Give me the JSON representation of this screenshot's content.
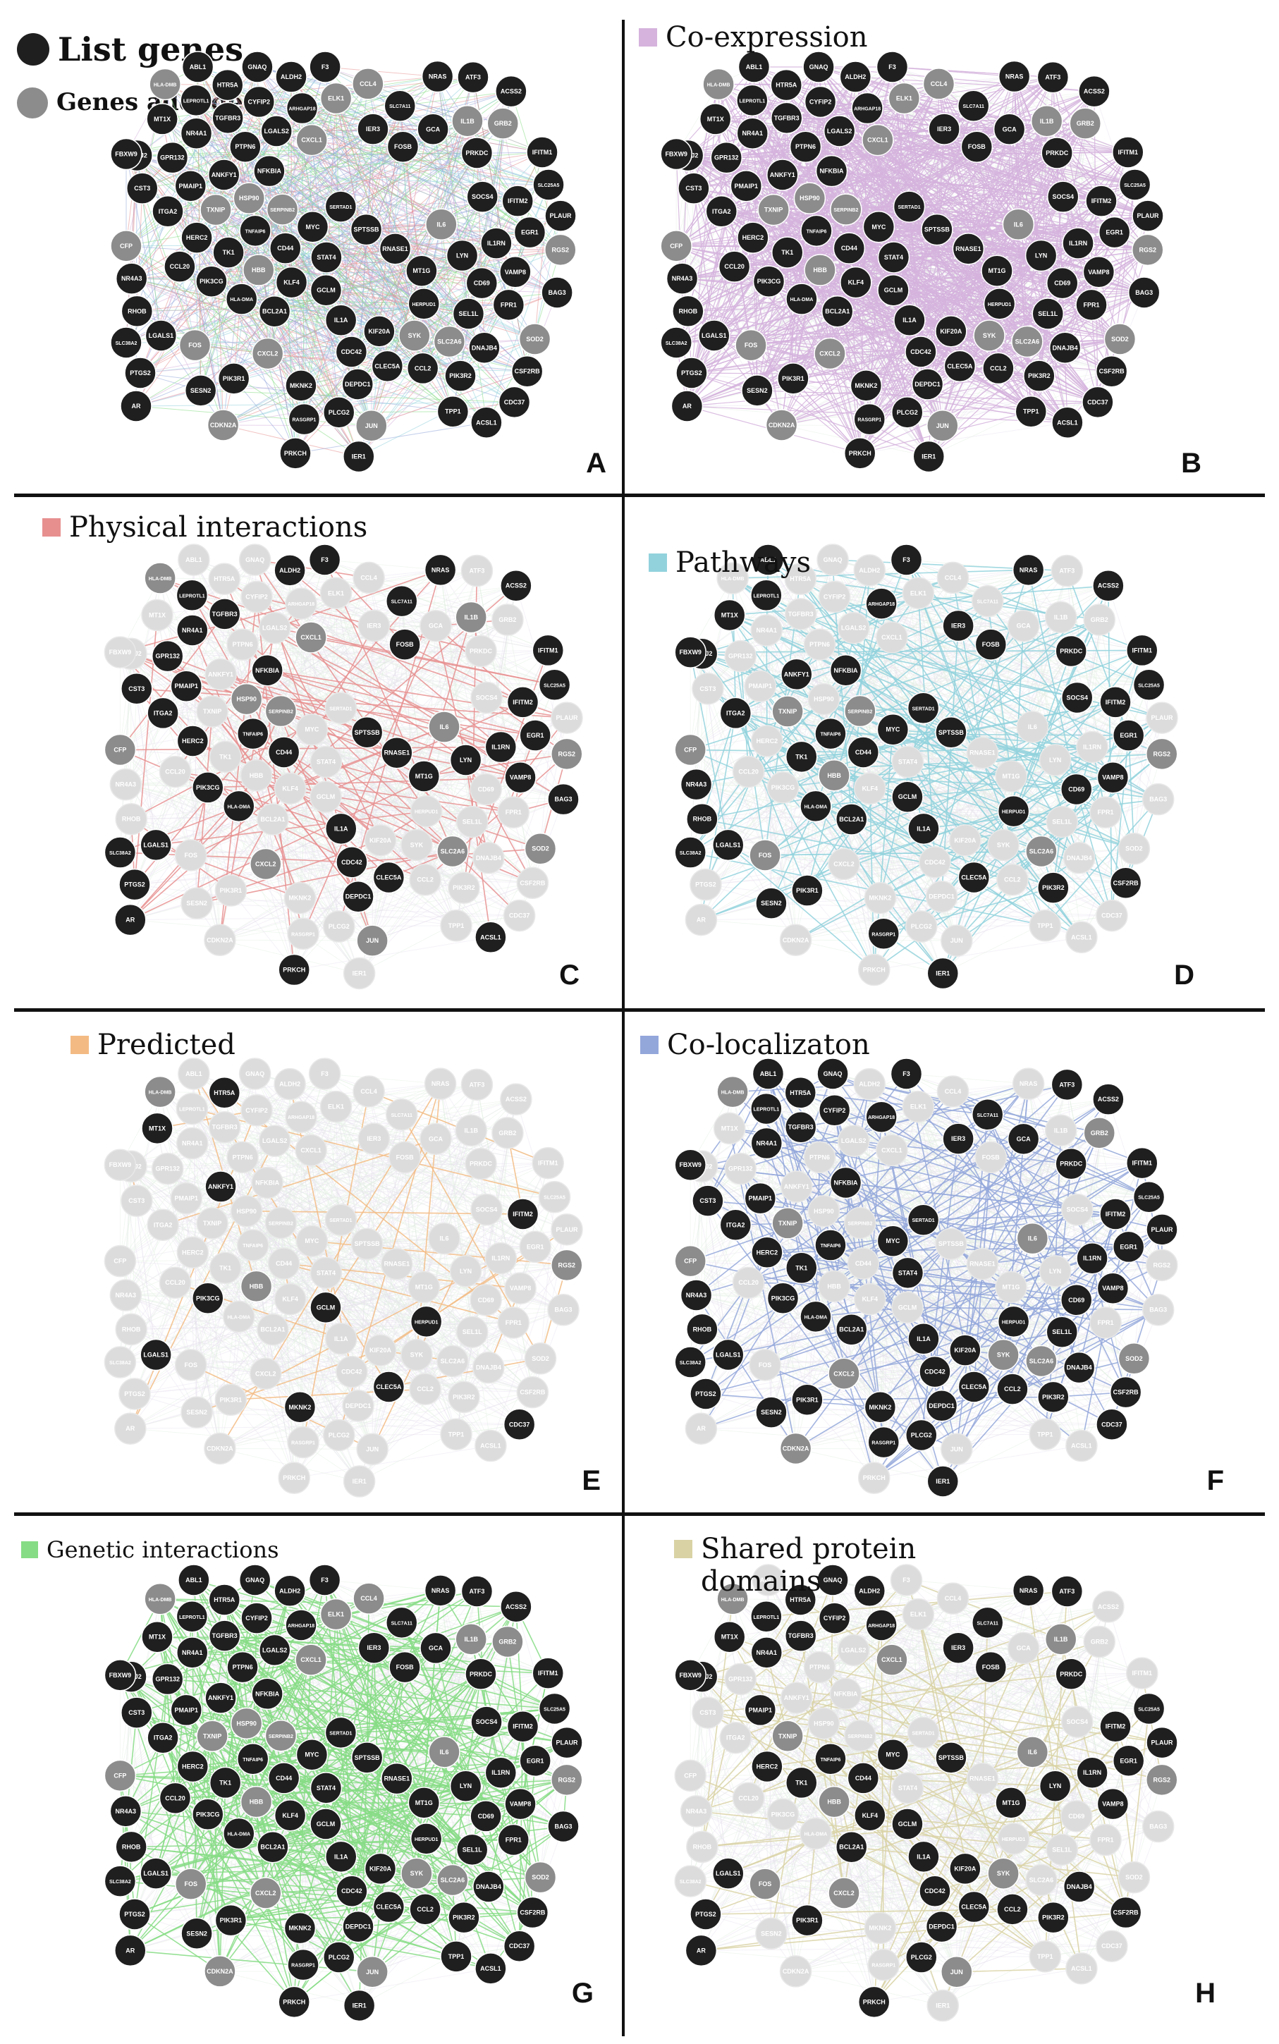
{
  "legend_global": {
    "list_genes": "List genes",
    "genes_added": "Genes addeded",
    "list_color": "#1f1f1f",
    "added_color": "#8c8c8c"
  },
  "panels": [
    {
      "letter": "A",
      "legend": "",
      "color": "",
      "mode": "all"
    },
    {
      "letter": "B",
      "legend": "Co-expression",
      "color": "#d5b3dd",
      "mode": "coexpression"
    },
    {
      "letter": "C",
      "legend": "Physical interactions",
      "color": "#e78f8f",
      "mode": "physical"
    },
    {
      "letter": "D",
      "legend": "Pathways",
      "color": "#92d2dd",
      "mode": "pathways"
    },
    {
      "letter": "E",
      "legend": "Predicted",
      "color": "#f3bb83",
      "mode": "predicted"
    },
    {
      "letter": "F",
      "legend": "Co-localizaton",
      "color": "#93a7db",
      "mode": "colocalization"
    },
    {
      "letter": "G",
      "legend": "Genetic interactions",
      "color": "#86dc85",
      "mode": "genetic"
    },
    {
      "letter": "H",
      "legend": "Shared protein\ndomains",
      "color": "#d9d2a4",
      "mode": "domains"
    }
  ],
  "genes": [
    "IL1A",
    "HSP90",
    "GCLM",
    "HLA-DMA",
    "ACSS2",
    "GCA",
    "HLA-DMB",
    "SERPINB2",
    "ACSL1",
    "IFITM1",
    "TNFAIP6",
    "TXNIP",
    "SLC25A5",
    "TPP1",
    "CD44",
    "VAMP8",
    "NRAS",
    "LGALS2",
    "KCNJ2",
    "ALDH2",
    "IL1RN",
    "HERPUD1",
    "HBB",
    "CCL4",
    "IER3",
    "CDC42",
    "LYN",
    "CDKN2A",
    "IL6",
    "IL1B",
    "CXCL2",
    "CDC37",
    "CSF2RB",
    "SLC7A11",
    "CXCL1",
    "DNAJB4",
    "SYK",
    "NR4A1",
    "TK1",
    "JUN",
    "GRB2",
    "GNAQ",
    "BCL2A1",
    "PIK3R2",
    "ABL1",
    "LGALS1",
    "KLF4",
    "SOD2",
    "PLAUR",
    "CCL2",
    "MKNK2",
    "ATF3",
    "CLEC5A",
    "HERC2",
    "STAT4",
    "PTPN6",
    "CCL20",
    "GPR132",
    "ITGA2",
    "DEPDC1",
    "PTGS2",
    "IER1",
    "IFITM2",
    "SPTSSB",
    "PLCG2",
    "CFP",
    "EGR1",
    "FOSB",
    "CST3",
    "CD69",
    "NR4A3",
    "RNASE1",
    "PMAIP1",
    "TGFBR3",
    "PIK3CG",
    "ARHGAP18",
    "BAG3",
    "F3",
    "ELK1",
    "RGS2",
    "MT1X",
    "FPR1",
    "NFKBIA",
    "SERTAD1",
    "SOCS4",
    "PIK3R1",
    "MYC",
    "FOS",
    "MT1G",
    "SLC2A6",
    "RASGRP1",
    "SLC38A2",
    "CYFIP2",
    "SESN2",
    "PRKCH",
    "PRKDC",
    "HTR5A",
    "ANKFY1",
    "KIF20A",
    "SEL1L",
    "RHOB",
    "LEPROTL1",
    "AR",
    "FBXW9"
  ],
  "gene_kind_added": [
    "HSP90",
    "HLA-DMB",
    "SERPINB2",
    "TXNIP",
    "HBB",
    "IL6",
    "IL1B",
    "CXCL2",
    "CXCL1",
    "GRB2",
    "JUN",
    "SOD2",
    "CFP",
    "ELK1",
    "RGS2",
    "FOS",
    "SLC2A6",
    "CDKN2A",
    "CCL4",
    "SYK"
  ]
}
